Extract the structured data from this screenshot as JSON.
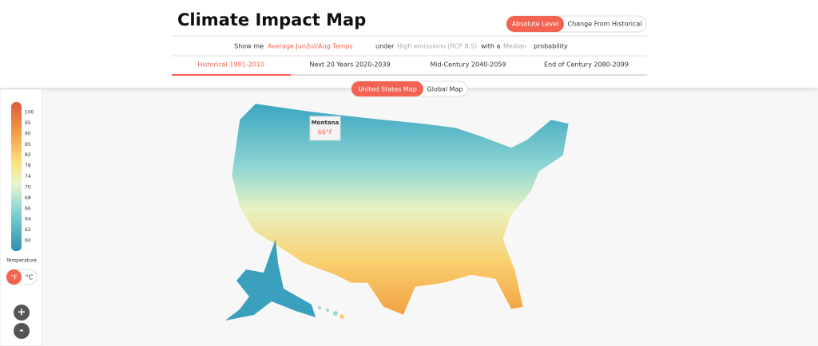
{
  "header": {
    "title": "Climate Impact Map",
    "mode_toggle": [
      "Absolute Level",
      "Change From Historical"
    ],
    "query": {
      "show_me": "Show me",
      "variable": "Average Jun/Jul/Aug Temps",
      "under": "under",
      "scenario": "High emissions (RCP 8.5)",
      "with_a": "with a",
      "likelihood": "Median",
      "probability": "probability"
    },
    "tabs": [
      "Historical 1981-2010",
      "Next 20 Years 2020-2039",
      "Mid-Century 2040-2059",
      "End of Century 2080-2099"
    ]
  },
  "map_toggle": [
    "United States Map",
    "Global Map"
  ],
  "legend": {
    "labels": [
      100,
      95,
      90,
      85,
      82,
      78,
      74,
      70,
      68,
      66,
      64,
      62,
      60
    ],
    "title": "Temperature",
    "units": [
      "°F",
      "°C"
    ]
  },
  "zoom": [
    "+",
    "-"
  ],
  "tooltip": {
    "region": "Montana",
    "value": "66°F"
  }
}
